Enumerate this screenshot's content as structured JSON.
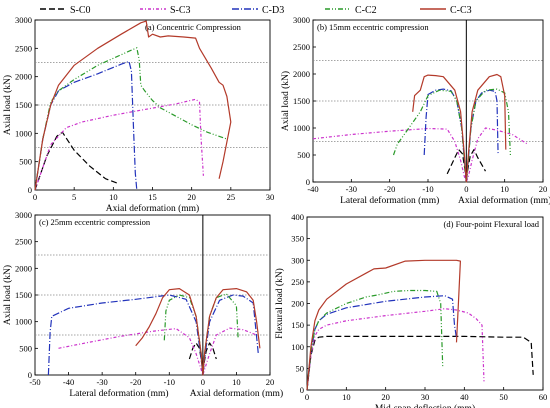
{
  "colors": {
    "S-C0": "#000000",
    "S-C3": "#cc33cc",
    "C-D3": "#2233bb",
    "C-C2": "#2a9a2a",
    "C-C3": "#b33a2a",
    "refline": "#888888"
  },
  "legend": {
    "items": [
      {
        "label": "S-C0",
        "key": "S-C0",
        "dash": "6,3"
      },
      {
        "label": "S-C3",
        "key": "S-C3",
        "dash": "3,2,1,2"
      },
      {
        "label": "C-D3",
        "key": "C-D3",
        "dash": "7,2,1,2"
      },
      {
        "label": "C-C2",
        "key": "C-C2",
        "dash": "5,2,1,2,1,2"
      },
      {
        "label": "C-C3",
        "key": "C-C3",
        "dash": ""
      }
    ]
  },
  "chart_data": [
    {
      "type": "line",
      "title": "(a) Concentric Compression",
      "xlabel": "Axial deformation (mm)",
      "ylabel": "Axial load (kN)",
      "xlim": [
        0,
        30
      ],
      "ylim": [
        0,
        3000
      ],
      "xticks": [
        "0",
        "5",
        "10",
        "15",
        "20",
        "25",
        "30"
      ],
      "yticks": [
        "0",
        "500",
        "1000",
        "1500",
        "2000",
        "2500",
        "3000"
      ],
      "reflines_y": [
        750,
        1500,
        2250
      ],
      "series": [
        {
          "name": "S-C0",
          "x": [
            0,
            1.5,
            2.8,
            3.5,
            5,
            7,
            9,
            10.5
          ],
          "y": [
            0,
            600,
            950,
            1020,
            700,
            420,
            200,
            120
          ]
        },
        {
          "name": "S-C3",
          "x": [
            0,
            2,
            4,
            6,
            10,
            14,
            18,
            20.5,
            21,
            21.2,
            21.5
          ],
          "y": [
            0,
            800,
            1100,
            1200,
            1320,
            1420,
            1520,
            1600,
            1550,
            900,
            250
          ]
        },
        {
          "name": "C-D3",
          "x": [
            0,
            1,
            2,
            3,
            5,
            8,
            11,
            12,
            12.3,
            12.6,
            12.8,
            13
          ],
          "y": [
            0,
            900,
            1500,
            1750,
            1900,
            2050,
            2220,
            2270,
            2100,
            1000,
            300,
            0
          ]
        },
        {
          "name": "C-C2",
          "x": [
            0,
            1,
            2,
            3,
            5,
            8,
            12,
            13,
            13.3,
            13.5,
            14,
            15,
            16,
            18,
            20,
            22,
            24.5
          ],
          "y": [
            0,
            900,
            1550,
            1750,
            1950,
            2200,
            2450,
            2510,
            2300,
            1850,
            1750,
            1580,
            1450,
            1300,
            1150,
            1020,
            900
          ]
        },
        {
          "name": "C-C3",
          "x": [
            0,
            1,
            2,
            3,
            5,
            8,
            11,
            13.5,
            14.2,
            14.5,
            15,
            16,
            17,
            19,
            20.5,
            21,
            22.5,
            23.5,
            24,
            24.5,
            25,
            24,
            23.5
          ],
          "y": [
            0,
            900,
            1500,
            1850,
            2200,
            2500,
            2750,
            2950,
            2980,
            2700,
            2750,
            2700,
            2720,
            2700,
            2680,
            2500,
            2150,
            1900,
            1850,
            1650,
            1200,
            500,
            200
          ]
        }
      ]
    },
    {
      "type": "line",
      "title": "(b) 15mm eccentric compression",
      "xlabel_left": "Lateral deformation (mm)",
      "xlabel_right": "Axial deformation (mm)",
      "ylabel": "Axial load (kN)",
      "xlim": [
        -40,
        20
      ],
      "ylim": [
        0,
        3000
      ],
      "xticks": [
        "-40",
        "-30",
        "-20",
        "-10",
        "0",
        "10",
        "20"
      ],
      "yticks": [
        "0",
        "500",
        "1000",
        "1500",
        "2000",
        "2500",
        "3000"
      ],
      "reflines_y": [
        750,
        1500,
        2250
      ],
      "series": [
        {
          "name": "S-C0",
          "x": [
            -5,
            -3,
            -2,
            -1,
            -0.3,
            0,
            0.3,
            1,
            2,
            3,
            5
          ],
          "y": [
            150,
            450,
            600,
            520,
            200,
            0,
            200,
            480,
            600,
            450,
            200
          ]
        },
        {
          "name": "S-C3",
          "x": [
            -40,
            -30,
            -20,
            -10,
            -5,
            -3,
            -1.5,
            -0.5,
            0,
            0.5,
            1.5,
            3,
            5,
            8,
            12,
            16
          ],
          "y": [
            800,
            880,
            940,
            990,
            980,
            750,
            400,
            100,
            0,
            100,
            400,
            800,
            1000,
            960,
            880,
            700
          ]
        },
        {
          "name": "C-D3",
          "x": [
            -11,
            -10.5,
            -10,
            -8,
            -6,
            -4,
            -2.5,
            -1.2,
            -0.5,
            0,
            0.5,
            1.2,
            2.5,
            4,
            6,
            7.5,
            8,
            8.3
          ],
          "y": [
            500,
            1200,
            1620,
            1700,
            1720,
            1690,
            1500,
            1000,
            400,
            0,
            400,
            1000,
            1500,
            1650,
            1700,
            1680,
            1500,
            500
          ]
        },
        {
          "name": "C-C2",
          "x": [
            -19,
            -18,
            -16,
            -14,
            -12,
            -10,
            -7,
            -4,
            -2.5,
            -1.2,
            -0.5,
            0,
            0.5,
            1.2,
            2.5,
            5,
            8,
            10,
            11,
            11.5
          ],
          "y": [
            500,
            700,
            900,
            1100,
            1300,
            1600,
            1700,
            1680,
            1500,
            1000,
            400,
            0,
            400,
            1000,
            1500,
            1700,
            1720,
            1650,
            1300,
            500
          ]
        },
        {
          "name": "C-C3",
          "x": [
            -14,
            -13.5,
            -12,
            -11,
            -10,
            -8,
            -6,
            -3,
            -1.5,
            -0.5,
            0,
            0.5,
            1.5,
            3,
            6,
            8,
            9,
            10,
            10.3
          ],
          "y": [
            1300,
            1600,
            1700,
            1950,
            1980,
            1970,
            1950,
            1700,
            1300,
            500,
            0,
            500,
            1300,
            1700,
            1950,
            1990,
            1950,
            1600,
            600
          ]
        }
      ]
    },
    {
      "type": "line",
      "title": "(c) 25mm eccentric compression",
      "xlabel_left": "Lateral deformation (mm)",
      "xlabel_right": "Axial deformation (mm)",
      "ylabel": "Axial load (kN)",
      "xlim": [
        -50,
        20
      ],
      "ylim": [
        0,
        3000
      ],
      "xticks": [
        "-50",
        "-40",
        "-30",
        "-20",
        "-10",
        "0",
        "10",
        "20"
      ],
      "yticks": [
        "0",
        "500",
        "1000",
        "1500",
        "2000",
        "2500",
        "3000"
      ],
      "reflines_y": [
        750,
        1500,
        2250
      ],
      "series": [
        {
          "name": "S-C0",
          "x": [
            -4,
            -3,
            -2,
            -1,
            -0.3,
            0,
            0.3,
            1,
            2,
            3,
            4
          ],
          "y": [
            300,
            500,
            600,
            500,
            200,
            0,
            200,
            450,
            600,
            500,
            300
          ]
        },
        {
          "name": "S-C3",
          "x": [
            -43,
            -35,
            -25,
            -15,
            -8,
            -4,
            -2,
            -0.5,
            0,
            0.5,
            2,
            4,
            8,
            12,
            16
          ],
          "y": [
            500,
            600,
            720,
            820,
            870,
            700,
            400,
            100,
            0,
            100,
            400,
            750,
            880,
            850,
            750
          ]
        },
        {
          "name": "C-D3",
          "x": [
            -46,
            -45.5,
            -45,
            -40,
            -30,
            -20,
            -10,
            -5,
            -2,
            -0.5,
            0,
            0.5,
            2,
            5,
            9,
            12,
            15,
            16.5
          ],
          "y": [
            0,
            800,
            1100,
            1250,
            1350,
            1420,
            1500,
            1420,
            1000,
            300,
            0,
            300,
            1000,
            1400,
            1500,
            1480,
            1350,
            400
          ]
        },
        {
          "name": "C-C2",
          "x": [
            -11.5,
            -11,
            -10,
            -7,
            -4,
            -2,
            -0.5,
            0,
            0.5,
            2,
            4,
            7,
            10,
            10.5
          ],
          "y": [
            650,
            1200,
            1400,
            1500,
            1450,
            1100,
            400,
            0,
            400,
            1100,
            1450,
            1520,
            1300,
            700
          ]
        },
        {
          "name": "C-C3",
          "x": [
            -20,
            -18,
            -16,
            -14,
            -12,
            -10,
            -7,
            -4,
            -2,
            -0.5,
            0,
            0.5,
            2,
            4,
            6,
            10,
            13,
            15,
            16,
            17
          ],
          "y": [
            550,
            700,
            900,
            1150,
            1450,
            1600,
            1620,
            1500,
            1100,
            400,
            0,
            400,
            1100,
            1450,
            1600,
            1620,
            1560,
            1400,
            1000,
            500
          ]
        }
      ]
    },
    {
      "type": "line",
      "title": "(d) Four-point Flexural load",
      "xlabel": "Mid-span deflection (mm)",
      "ylabel": "Flexural load (kN)",
      "xlim": [
        0,
        60
      ],
      "ylim": [
        0,
        400
      ],
      "xticks": [
        "0",
        "10",
        "20",
        "30",
        "40",
        "50",
        "60"
      ],
      "yticks": [
        "0",
        "50",
        "100",
        "150",
        "200",
        "250",
        "300",
        "350",
        "400"
      ],
      "reflines_y": [],
      "series": [
        {
          "name": "S-C0",
          "x": [
            0,
            1,
            2,
            3,
            5,
            10,
            20,
            30,
            40,
            50,
            55,
            57,
            57.5
          ],
          "y": [
            0,
            80,
            115,
            122,
            124,
            124,
            124,
            124,
            124,
            122,
            122,
            110,
            35
          ]
        },
        {
          "name": "S-C3",
          "x": [
            0,
            1,
            2,
            3,
            5,
            10,
            20,
            30,
            35,
            38,
            41,
            43,
            44.5,
            45
          ],
          "y": [
            0,
            80,
            125,
            140,
            150,
            160,
            172,
            182,
            188,
            185,
            178,
            165,
            150,
            20
          ]
        },
        {
          "name": "C-D3",
          "x": [
            0,
            1,
            2,
            3,
            5,
            10,
            20,
            30,
            35,
            37,
            37.5,
            38
          ],
          "y": [
            0,
            90,
            140,
            160,
            175,
            190,
            205,
            215,
            218,
            210,
            150,
            120
          ]
        },
        {
          "name": "C-C2",
          "x": [
            0,
            1,
            2,
            3,
            5,
            10,
            15,
            18,
            22,
            26,
            30,
            33,
            34,
            34.5
          ],
          "y": [
            0,
            90,
            140,
            160,
            178,
            200,
            215,
            220,
            228,
            230,
            230,
            228,
            200,
            55
          ]
        },
        {
          "name": "C-C3",
          "x": [
            0,
            1,
            2,
            3,
            5,
            10,
            15,
            17,
            20,
            25,
            30,
            35,
            38,
            39,
            38.5,
            38
          ],
          "y": [
            0,
            100,
            160,
            185,
            210,
            245,
            270,
            280,
            282,
            298,
            300,
            300,
            300,
            298,
            200,
            110
          ]
        }
      ]
    }
  ]
}
